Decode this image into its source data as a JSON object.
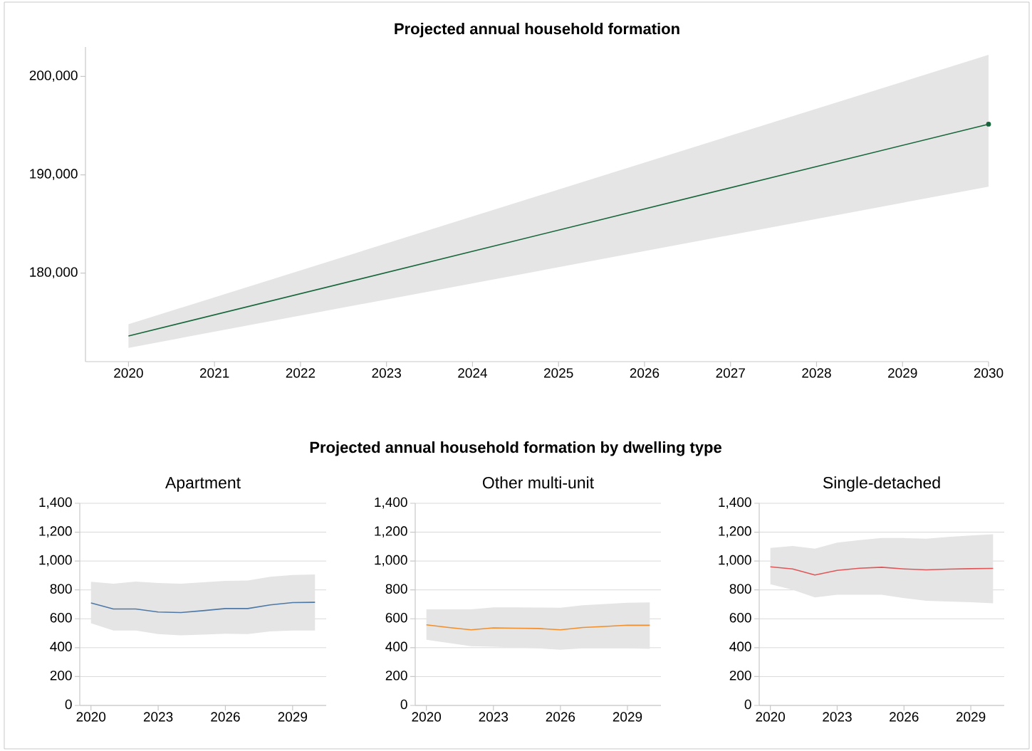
{
  "chart_data": [
    {
      "type": "line",
      "title": "Projected annual household formation",
      "x": [
        2020,
        2030
      ],
      "xlim": [
        2019.5,
        2030
      ],
      "ylim": [
        171000,
        203000
      ],
      "xticks": [
        2020,
        2021,
        2022,
        2023,
        2024,
        2025,
        2026,
        2027,
        2028,
        2029,
        2030
      ],
      "yticks": [
        {
          "value": 180000,
          "label": "180,000"
        },
        {
          "value": 190000,
          "label": "190,000"
        },
        {
          "value": 200000,
          "label": "200,000"
        }
      ],
      "grid": false,
      "marker": "circle",
      "series": [
        {
          "color": "#17653a",
          "values": [
            173600,
            195150
          ],
          "lower": [
            172400,
            188800
          ],
          "upper": [
            174800,
            202200
          ]
        }
      ]
    },
    {
      "type": "line",
      "title": "Apartment",
      "annotations": [
        "Projected annual household formation by dwelling type"
      ],
      "x": [
        2020,
        2021,
        2022,
        2023,
        2024,
        2025,
        2026,
        2027,
        2028,
        2029,
        2030
      ],
      "xlim": [
        2019.5,
        2030.5
      ],
      "ylim": [
        0,
        1400
      ],
      "xticks": [
        2020,
        2023,
        2026,
        2029
      ],
      "yticks": [
        0,
        200,
        400,
        600,
        800,
        {
          "value": 1000,
          "label": "1,000"
        },
        {
          "value": 1200,
          "label": "1,200"
        },
        {
          "value": 1400,
          "label": "1,400"
        }
      ],
      "grid": "y",
      "series": [
        {
          "color": "#4e79a7",
          "values": [
            710,
            668,
            668,
            647,
            643,
            656,
            671,
            671,
            696,
            712,
            714
          ],
          "lower": [
            569,
            519,
            519,
            494,
            486,
            490,
            496,
            494,
            512,
            519,
            519
          ],
          "upper": [
            857,
            843,
            858,
            848,
            843,
            853,
            863,
            865,
            891,
            903,
            907
          ]
        }
      ]
    },
    {
      "type": "line",
      "title": "Other multi-unit",
      "x": [
        2020,
        2021,
        2022,
        2023,
        2024,
        2025,
        2026,
        2027,
        2028,
        2029,
        2030
      ],
      "xlim": [
        2019.5,
        2030.5
      ],
      "ylim": [
        0,
        1400
      ],
      "xticks": [
        2020,
        2023,
        2026,
        2029
      ],
      "yticks": [
        0,
        200,
        400,
        600,
        800,
        {
          "value": 1000,
          "label": "1,000"
        },
        {
          "value": 1200,
          "label": "1,200"
        },
        {
          "value": 1400,
          "label": "1,400"
        }
      ],
      "grid": "y",
      "series": [
        {
          "color": "#f28e2b",
          "values": [
            558,
            540,
            524,
            537,
            535,
            533,
            524,
            540,
            547,
            556,
            555
          ],
          "lower": [
            455,
            432,
            410,
            407,
            402,
            395,
            386,
            395,
            396,
            395,
            392
          ],
          "upper": [
            665,
            666,
            666,
            679,
            679,
            678,
            676,
            694,
            702,
            711,
            714
          ]
        }
      ]
    },
    {
      "type": "line",
      "title": "Single-detached",
      "x": [
        2020,
        2021,
        2022,
        2023,
        2024,
        2025,
        2026,
        2027,
        2028,
        2029,
        2030
      ],
      "xlim": [
        2019.5,
        2030.5
      ],
      "ylim": [
        0,
        1400
      ],
      "xticks": [
        2020,
        2023,
        2026,
        2029
      ],
      "yticks": [
        0,
        200,
        400,
        600,
        800,
        {
          "value": 1000,
          "label": "1,000"
        },
        {
          "value": 1200,
          "label": "1,200"
        },
        {
          "value": 1400,
          "label": "1,400"
        }
      ],
      "grid": "y",
      "series": [
        {
          "color": "#e15759",
          "values": [
            960,
            945,
            903,
            935,
            950,
            957,
            945,
            939,
            944,
            947,
            949
          ],
          "lower": [
            839,
            801,
            748,
            766,
            767,
            766,
            743,
            725,
            720,
            715,
            707
          ],
          "upper": [
            1091,
            1104,
            1086,
            1127,
            1145,
            1160,
            1159,
            1155,
            1167,
            1177,
            1185
          ]
        }
      ]
    }
  ]
}
